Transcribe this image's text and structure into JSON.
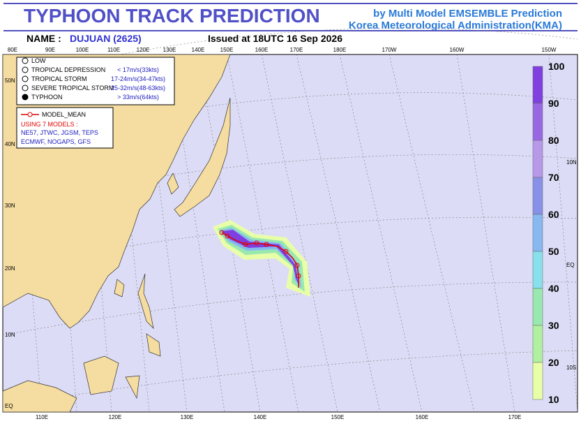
{
  "header": {
    "title": "TYPHOON TRACK PREDICTION",
    "credit_line1": "by Multi Model EMSEMBLE Prediction",
    "credit_line2": "Korea Meteorological Administration(KMA)",
    "name_label": "NAME :",
    "name_value": "DUJUAN (2625)",
    "issued": "Issued at  18UTC 16 Sep 2026"
  },
  "map": {
    "top_lon_labels": [
      "80E",
      "90E",
      "100E",
      "110E",
      "120E",
      "130E",
      "140E",
      "150E",
      "160E",
      "170E",
      "180E",
      "170W",
      "160W",
      "150W"
    ],
    "bottom_lon_labels": [
      "110E",
      "120E",
      "130E",
      "140E",
      "150E",
      "160E",
      "170E"
    ],
    "left_lat_labels": [
      "50N",
      "40N",
      "30N",
      "20N",
      "10N",
      "EQ"
    ],
    "right_lat_labels": [
      "10N",
      "EQ",
      "10S"
    ]
  },
  "legend": {
    "symbols": [
      {
        "label": "LOW",
        "range": ""
      },
      {
        "label": "TROPICAL DEPRESSION",
        "range": "< 17m/s(33kts)"
      },
      {
        "label": "TROPICAL STORM",
        "range": "17-24m/s(34-47kts)"
      },
      {
        "label": "SEVERE TROPICAL STORM",
        "range": "25-32m/s(48-63kts)"
      },
      {
        "label": "TYPHOON",
        "range": "> 33m/s(64kts)"
      }
    ],
    "model_mean": "MODEL_MEAN",
    "models_title": "USING 7 MODELS :",
    "models_line1": "NE57, JTWC, JGSM, TEPS",
    "models_line2": "ECMWF, NOGAPS, GFS"
  },
  "colorbar": {
    "ticks": [
      100,
      90,
      80,
      70,
      60,
      50,
      40,
      30,
      20,
      10
    ],
    "colors": [
      "#8040e0",
      "#9868e4",
      "#b898e8",
      "#8890e8",
      "#88b8f0",
      "#88e0ec",
      "#98e8b0",
      "#b0f0a0",
      "#e8ffa8"
    ]
  }
}
